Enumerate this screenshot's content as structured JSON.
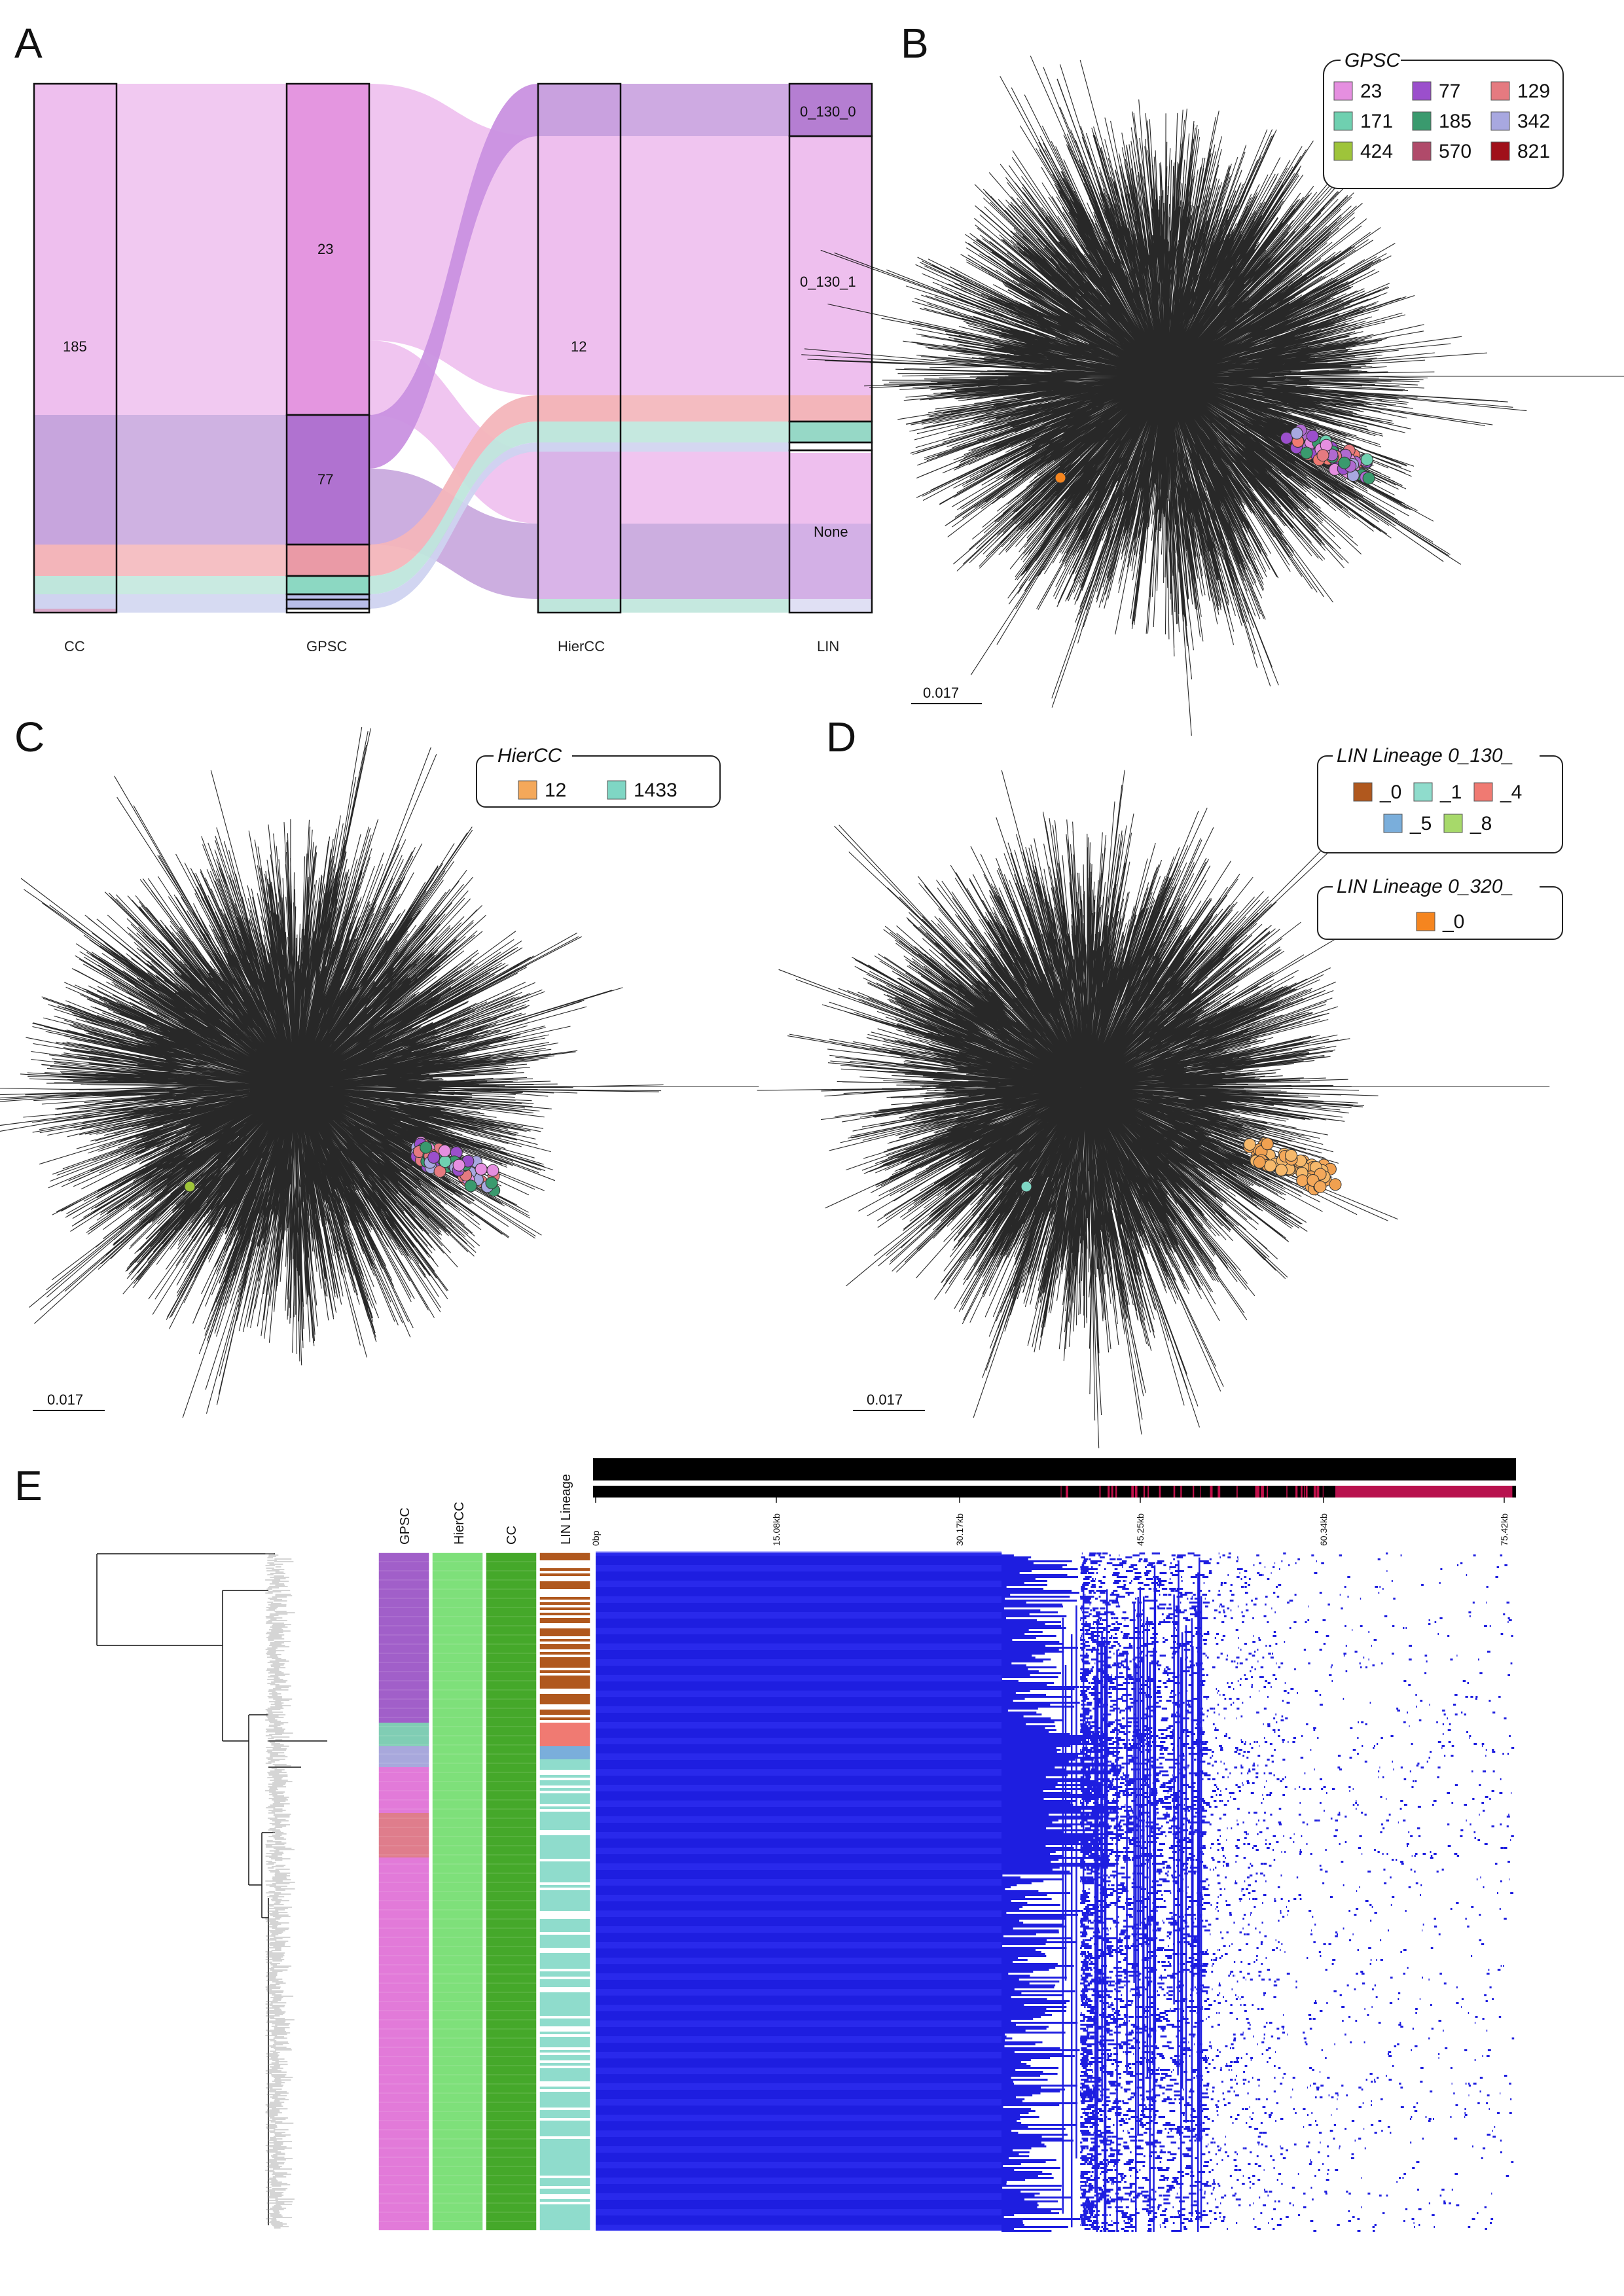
{
  "panels": {
    "a": "A",
    "b": "B",
    "c": "C",
    "d": "D",
    "e": "E"
  },
  "colors": {
    "gpsc_23": "#e58fe0",
    "gpsc_77": "#9b4fcc",
    "gpsc_129": "#e57a80",
    "gpsc_171": "#6fd0b0",
    "gpsc_185": "#3a9a6e",
    "gpsc_342": "#a8a8e0",
    "gpsc_424": "#9ec43a",
    "gpsc_570": "#b04a6a",
    "gpsc_821": "#a0101a",
    "hiercc_12": "#f4a85a",
    "hiercc_1433": "#7fd6c4",
    "lin_0": "#b0581e",
    "lin_1": "#8fdccc",
    "lin_4": "#f07a72",
    "lin_5": "#7aaedb",
    "lin_8": "#a7d96a",
    "lin320_0": "#f5851f",
    "heatmap": "#1e1ee0",
    "hiercc_track": "#7ee07a",
    "cc_track": "#45a82a"
  },
  "chart_data": [
    {
      "type": "sankey",
      "panel": "A",
      "axes": [
        "CC",
        "GPSC",
        "HierCC",
        "LIN"
      ],
      "node_labels": {
        "cc": [
          "185"
        ],
        "gpsc": [
          "23",
          "77"
        ],
        "hiercc": [
          "12"
        ],
        "lin": [
          "0_130_0",
          "0_130_1",
          "None"
        ]
      }
    },
    {
      "type": "scatter",
      "panel": "B",
      "legend_title": "GPSC",
      "legend": [
        "23",
        "77",
        "129",
        "171",
        "185",
        "342",
        "424",
        "570",
        "821"
      ],
      "scale_bar": "0.017"
    },
    {
      "type": "scatter",
      "panel": "C",
      "legend_title": "HierCC",
      "legend": [
        "12",
        "1433"
      ],
      "scale_bar": "0.017"
    },
    {
      "type": "scatter",
      "panel": "D",
      "legend_groups": [
        {
          "title": "LIN Lineage 0_130_",
          "items": [
            "_0",
            "_1",
            "_4",
            "_5",
            "_8"
          ]
        },
        {
          "title": "LIN Lineage 0_320_",
          "items": [
            "_0"
          ]
        }
      ],
      "scale_bar": "0.017"
    },
    {
      "type": "heatmap",
      "panel": "E",
      "tracks": [
        "GPSC",
        "HierCC",
        "CC",
        "LIN Lineage"
      ],
      "genome_ticks": [
        "0bp",
        "15.08kb",
        "30.17kb",
        "45.25kb",
        "60.34kb",
        "75.42kb"
      ]
    }
  ]
}
